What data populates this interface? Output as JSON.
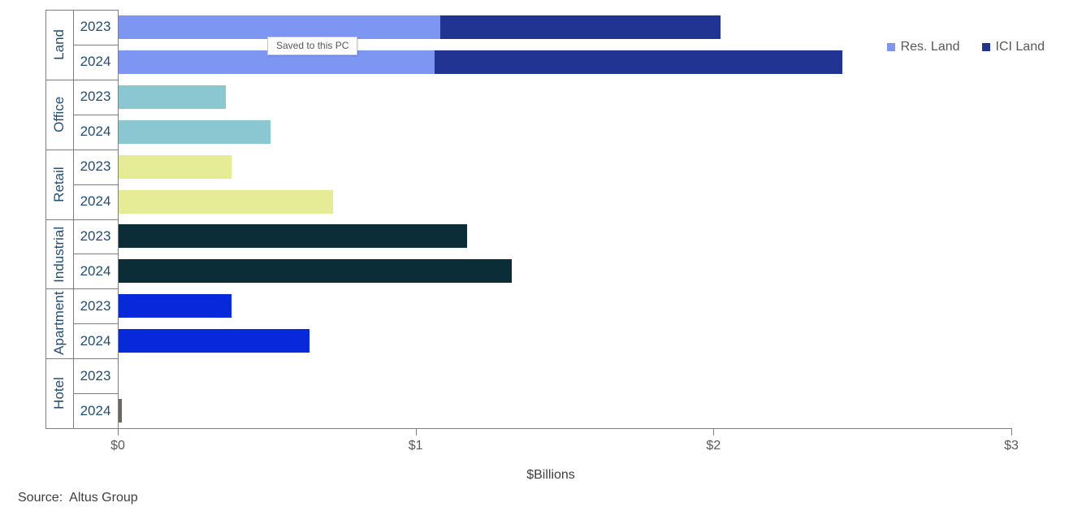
{
  "tooltip": {
    "text": "Saved to this PC"
  },
  "source_note": "Source:  Altus Group",
  "colors": {
    "res_land": "#7D96F1",
    "ici_land": "#213491",
    "office": "#8BC7D1",
    "retail": "#E6EC95",
    "industrial": "#0A2D37",
    "apartment": "#0529DB",
    "hotel": "#6B675F",
    "axis_line": "#7F7F7F",
    "tick_text": "#595959",
    "category_text": "#1F4E79"
  },
  "chart_data": {
    "type": "bar",
    "orientation": "horizontal",
    "stacked": "only Land category (Res. Land + ICI Land)",
    "xlabel": "$Billions",
    "xlim": [
      0,
      3
    ],
    "x_ticks": [
      {
        "label": "$0",
        "value": 0
      },
      {
        "label": "$1",
        "value": 1
      },
      {
        "label": "$2",
        "value": 2
      },
      {
        "label": "$3",
        "value": 3
      }
    ],
    "legend": [
      {
        "label": "Res. Land",
        "color": "#7D96F1"
      },
      {
        "label": "ICI Land",
        "color": "#213491"
      }
    ],
    "legend_position": "top-right",
    "grid": false,
    "groups": [
      {
        "category": "Land",
        "rows": [
          {
            "year": "2023",
            "segments": [
              {
                "series": "Res. Land",
                "value": 1.08,
                "color": "#7D96F1"
              },
              {
                "series": "ICI Land",
                "value": 0.94,
                "color": "#213491"
              }
            ]
          },
          {
            "year": "2024",
            "segments": [
              {
                "series": "Res. Land",
                "value": 1.06,
                "color": "#7D96F1"
              },
              {
                "series": "ICI Land",
                "value": 1.37,
                "color": "#213491"
              }
            ]
          }
        ]
      },
      {
        "category": "Office",
        "rows": [
          {
            "year": "2023",
            "segments": [
              {
                "series": "Office",
                "value": 0.36,
                "color": "#8BC7D1"
              }
            ]
          },
          {
            "year": "2024",
            "segments": [
              {
                "series": "Office",
                "value": 0.51,
                "color": "#8BC7D1"
              }
            ]
          }
        ]
      },
      {
        "category": "Retail",
        "rows": [
          {
            "year": "2023",
            "segments": [
              {
                "series": "Retail",
                "value": 0.38,
                "color": "#E6EC95"
              }
            ]
          },
          {
            "year": "2024",
            "segments": [
              {
                "series": "Retail",
                "value": 0.72,
                "color": "#E6EC95"
              }
            ]
          }
        ]
      },
      {
        "category": "Industrial",
        "rows": [
          {
            "year": "2023",
            "segments": [
              {
                "series": "Industrial",
                "value": 1.17,
                "color": "#0A2D37"
              }
            ]
          },
          {
            "year": "2024",
            "segments": [
              {
                "series": "Industrial",
                "value": 1.32,
                "color": "#0A2D37"
              }
            ]
          }
        ]
      },
      {
        "category": "Apartment",
        "rows": [
          {
            "year": "2023",
            "segments": [
              {
                "series": "Apartment",
                "value": 0.38,
                "color": "#0529DB"
              }
            ]
          },
          {
            "year": "2024",
            "segments": [
              {
                "series": "Apartment",
                "value": 0.64,
                "color": "#0529DB"
              }
            ]
          }
        ]
      },
      {
        "category": "Hotel",
        "rows": [
          {
            "year": "2023",
            "segments": [
              {
                "series": "Hotel",
                "value": 0.0,
                "color": "#6B675F"
              }
            ]
          },
          {
            "year": "2024",
            "segments": [
              {
                "series": "Hotel",
                "value": 0.01,
                "color": "#6B675F"
              }
            ]
          }
        ]
      }
    ]
  }
}
